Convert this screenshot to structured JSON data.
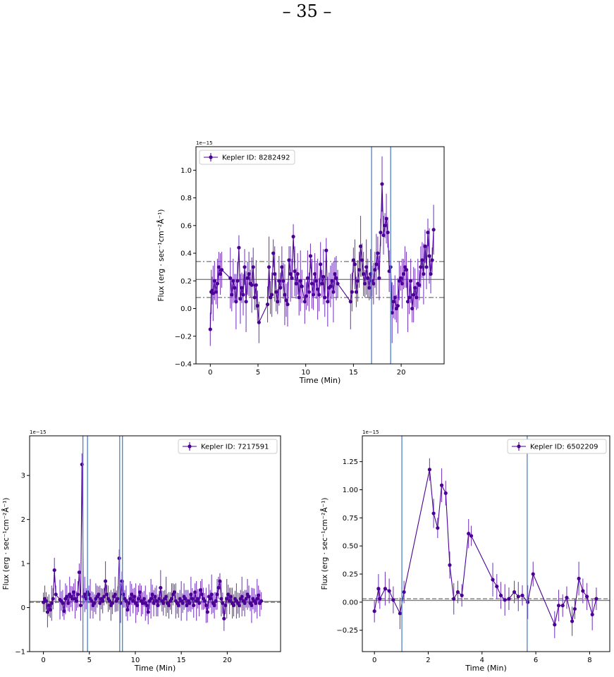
{
  "page_number": "– 35 –",
  "colors": {
    "series": "#4b0096",
    "vline": "#4e82c8",
    "hline": "#7f7f7f"
  },
  "chart_data": [
    {
      "type": "scatter",
      "legend": "Kepler ID: 8282492",
      "legend_loc": "top-left",
      "offset_text": "1e−15",
      "xlabel": "Time (Min)",
      "ylabel": "Flux (erg · sec⁻¹cm⁻²Å⁻¹)",
      "xlim": [
        -1.5,
        24.5
      ],
      "ylim": [
        -0.4,
        1.17
      ],
      "xticks": [
        0,
        5,
        10,
        15,
        20
      ],
      "yticks": [
        -0.4,
        -0.2,
        0.0,
        0.2,
        0.4,
        0.6,
        0.8,
        1.0
      ],
      "ytick_labels": [
        "−0.4",
        "−0.2",
        "0.0",
        "0.2",
        "0.4",
        "0.6",
        "0.8",
        "1.0"
      ],
      "vlines": [
        16.9,
        18.9
      ],
      "hlines": [
        {
          "y": 0.21,
          "style": "solid"
        },
        {
          "y": 0.34,
          "style": "dashdot"
        },
        {
          "y": 0.08,
          "style": "dashdot"
        }
      ],
      "x": [
        0.0,
        0.1,
        0.2,
        0.3,
        0.45,
        0.6,
        0.75,
        0.9,
        1.05,
        1.2,
        2.1,
        2.25,
        2.4,
        2.55,
        2.7,
        2.85,
        3.0,
        3.15,
        3.3,
        3.45,
        3.6,
        3.75,
        3.9,
        4.05,
        4.2,
        4.35,
        4.5,
        4.65,
        4.8,
        4.95,
        5.1,
        6.0,
        6.15,
        6.3,
        6.45,
        6.6,
        6.75,
        6.9,
        7.05,
        7.2,
        7.35,
        7.5,
        7.65,
        7.8,
        7.95,
        8.1,
        8.25,
        8.4,
        8.55,
        8.7,
        8.85,
        9.0,
        9.15,
        9.3,
        9.45,
        9.6,
        9.9,
        10.05,
        10.2,
        10.35,
        10.5,
        10.65,
        10.8,
        10.95,
        11.1,
        11.25,
        11.4,
        11.55,
        11.7,
        11.85,
        12.0,
        12.15,
        12.3,
        12.45,
        12.6,
        12.75,
        12.9,
        13.05,
        13.2,
        13.35,
        14.7,
        14.85,
        15.0,
        15.15,
        15.3,
        15.45,
        15.6,
        15.75,
        15.9,
        16.05,
        16.2,
        16.35,
        16.5,
        16.65,
        16.8,
        16.95,
        17.1,
        17.25,
        17.4,
        17.55,
        17.7,
        17.85,
        18.0,
        18.15,
        18.3,
        18.45,
        18.6,
        18.75,
        18.9,
        19.05,
        19.2,
        19.35,
        19.5,
        19.65,
        19.8,
        19.95,
        20.1,
        20.25,
        20.4,
        20.55,
        20.7,
        20.85,
        21.0,
        21.15,
        21.3,
        21.45,
        21.6,
        21.75,
        21.9,
        22.05,
        22.2,
        22.35,
        22.5,
        22.65,
        22.8,
        22.95,
        23.1,
        23.25,
        23.4
      ],
      "y": [
        -0.15,
        0.12,
        0.13,
        0.11,
        0.2,
        0.12,
        0.18,
        0.3,
        0.25,
        0.28,
        0.22,
        0.1,
        0.2,
        0.15,
        0.05,
        0.2,
        0.44,
        0.07,
        0.15,
        0.1,
        0.3,
        0.05,
        0.22,
        0.25,
        0.18,
        0.17,
        0.3,
        0.08,
        0.17,
        0.02,
        -0.1,
        0.03,
        0.3,
        0.08,
        0.1,
        0.4,
        0.25,
        0.12,
        0.05,
        0.2,
        0.15,
        0.3,
        0.2,
        0.1,
        0.06,
        0.03,
        0.35,
        0.25,
        0.22,
        0.52,
        0.27,
        0.18,
        0.25,
        0.08,
        0.2,
        0.16,
        0.05,
        0.09,
        0.22,
        0.12,
        0.38,
        0.18,
        0.1,
        0.25,
        0.2,
        0.14,
        0.1,
        0.32,
        0.18,
        0.23,
        0.08,
        0.42,
        0.05,
        0.15,
        0.16,
        0.2,
        0.12,
        0.25,
        0.22,
        0.18,
        0.05,
        0.12,
        0.35,
        0.32,
        0.12,
        0.2,
        0.28,
        0.45,
        0.35,
        0.25,
        0.18,
        0.3,
        0.22,
        0.15,
        0.25,
        0.2,
        0.18,
        0.28,
        0.32,
        0.4,
        0.22,
        0.55,
        0.9,
        0.53,
        0.6,
        0.65,
        0.55,
        0.27,
        0.3,
        -0.03,
        0.05,
        0.08,
        0.0,
        0.02,
        0.2,
        0.22,
        0.18,
        0.25,
        0.3,
        0.28,
        0.05,
        0.08,
        0.2,
        0.0,
        0.1,
        0.15,
        0.08,
        0.18,
        0.17,
        0.3,
        0.35,
        0.25,
        0.45,
        0.3,
        0.55,
        0.38,
        0.25,
        0.35,
        0.57
      ],
      "yerr_pattern": [
        0.12,
        0.16,
        0.1,
        0.2,
        0.14,
        0.09,
        0.18,
        0.11,
        0.15,
        0.13,
        0.22
      ]
    },
    {
      "type": "scatter",
      "legend": "Kepler ID: 7217591",
      "legend_loc": "top-right",
      "offset_text": "1e−15",
      "xlabel": "Time (Min)",
      "ylabel": "Flux (erg · sec⁻¹cm⁻²Å⁻¹)",
      "xlim": [
        -1.5,
        25.8
      ],
      "ylim": [
        -1.0,
        3.9
      ],
      "xticks": [
        0,
        5,
        10,
        15,
        20
      ],
      "yticks": [
        -1,
        0,
        1,
        2,
        3
      ],
      "ytick_labels": [
        "−1",
        "0",
        "1",
        "2",
        "3"
      ],
      "vlines": [
        4.3,
        4.8,
        8.3,
        8.6
      ],
      "hlines": [
        {
          "y": 0.14,
          "style": "solid"
        },
        {
          "y": 0.12,
          "style": "dashed"
        }
      ],
      "x": [
        0.0,
        0.15,
        0.3,
        0.45,
        0.6,
        0.75,
        0.9,
        1.05,
        1.2,
        1.35,
        1.8,
        1.95,
        2.1,
        2.25,
        2.4,
        2.55,
        2.7,
        2.85,
        3.0,
        3.15,
        3.3,
        3.45,
        3.6,
        3.75,
        3.9,
        4.05,
        4.2,
        4.35,
        4.5,
        4.65,
        4.8,
        4.95,
        5.1,
        5.25,
        5.4,
        5.55,
        5.7,
        5.85,
        6.0,
        6.15,
        6.3,
        6.45,
        6.6,
        6.75,
        6.9,
        7.05,
        7.2,
        7.35,
        7.5,
        7.65,
        7.8,
        7.95,
        8.1,
        8.25,
        8.4,
        8.55,
        8.7,
        8.85,
        9.0,
        9.15,
        9.3,
        9.45,
        9.6,
        9.75,
        9.9,
        10.05,
        10.2,
        10.35,
        10.5,
        10.65,
        10.8,
        10.95,
        11.1,
        11.25,
        11.4,
        11.55,
        11.7,
        11.85,
        12.0,
        12.15,
        12.3,
        12.45,
        12.6,
        12.75,
        12.9,
        13.05,
        13.2,
        13.35,
        13.5,
        13.65,
        13.8,
        13.95,
        14.1,
        14.25,
        14.4,
        14.55,
        14.7,
        14.85,
        15.0,
        15.15,
        15.3,
        15.45,
        15.6,
        15.75,
        15.9,
        16.05,
        16.2,
        16.35,
        16.5,
        16.65,
        16.8,
        16.95,
        17.1,
        17.25,
        17.4,
        17.55,
        17.7,
        17.85,
        18.0,
        18.15,
        18.3,
        18.45,
        18.6,
        18.75,
        18.9,
        19.05,
        19.2,
        19.35,
        19.5,
        19.65,
        19.8,
        19.95,
        20.1,
        20.25,
        20.4,
        20.55,
        20.7,
        20.85,
        21.0,
        21.15,
        21.3,
        21.45,
        21.6,
        21.75,
        21.9,
        22.05,
        22.2,
        22.35,
        22.5,
        22.65,
        22.8,
        22.95,
        23.1,
        23.25,
        23.4,
        23.55,
        23.7
      ],
      "y": [
        0.12,
        0.2,
        0.15,
        -0.1,
        0.05,
        -0.05,
        0.1,
        0.2,
        0.85,
        0.3,
        0.18,
        0.15,
        0.1,
        -0.08,
        0.2,
        0.25,
        0.1,
        0.3,
        0.25,
        0.2,
        0.35,
        0.2,
        0.15,
        0.3,
        0.8,
        0.05,
        3.25,
        0.25,
        0.3,
        0.2,
        0.35,
        0.3,
        0.2,
        0.15,
        0.05,
        0.1,
        0.2,
        0.25,
        0.3,
        0.1,
        0.2,
        0.15,
        0.25,
        0.6,
        0.3,
        0.2,
        0.15,
        0.05,
        0.1,
        0.25,
        0.3,
        0.15,
        0.2,
        1.12,
        0.1,
        0.6,
        0.3,
        0.2,
        0.15,
        -0.05,
        0.1,
        0.2,
        0.3,
        0.15,
        0.25,
        0.1,
        0.05,
        0.2,
        0.35,
        0.15,
        0.1,
        0.2,
        0.1,
        0.05,
        -0.1,
        0.15,
        0.2,
        0.3,
        0.1,
        0.25,
        0.15,
        0.05,
        0.2,
        0.45,
        0.15,
        0.1,
        0.2,
        0.25,
        0.1,
        0.05,
        0.15,
        0.2,
        0.3,
        0.35,
        0.15,
        0.1,
        0.05,
        0.2,
        0.15,
        0.1,
        0.25,
        0.2,
        0.05,
        0.15,
        0.1,
        0.3,
        0.2,
        0.05,
        0.35,
        0.15,
        0.2,
        0.1,
        0.4,
        0.3,
        0.2,
        0.15,
        0.05,
        -0.1,
        0.25,
        0.2,
        0.3,
        0.1,
        0.05,
        0.15,
        0.3,
        0.45,
        0.6,
        0.2,
        0.1,
        -0.25,
        0.05,
        0.2,
        0.3,
        0.15,
        0.25,
        0.1,
        0.05,
        0.2,
        0.15,
        0.1,
        0.05,
        0.2,
        0.25,
        0.15,
        0.1,
        0.2,
        0.3,
        0.25,
        0.1,
        0.05,
        0.2,
        0.15,
        0.1,
        0.2,
        0.28,
        0.1,
        0.15
      ],
      "yerr_pattern": [
        0.22,
        0.3,
        0.2,
        0.35,
        0.25,
        0.18,
        0.4,
        0.24,
        0.28,
        0.2,
        0.45
      ]
    },
    {
      "type": "scatter",
      "legend": "Kepler ID: 6502209",
      "legend_loc": "top-right",
      "offset_text": "1e−15",
      "xlabel": "Time (Min)",
      "ylabel": "Flux (erg · sec⁻¹cm⁻²Å⁻¹)",
      "xlim": [
        -0.45,
        8.75
      ],
      "ylim": [
        -0.44,
        1.48
      ],
      "xticks": [
        0,
        2,
        4,
        6,
        8
      ],
      "yticks": [
        -0.25,
        0.0,
        0.25,
        0.5,
        0.75,
        1.0,
        1.25
      ],
      "ytick_labels": [
        "−0.25",
        "0.00",
        "0.25",
        "0.50",
        "0.75",
        "1.00",
        "1.25"
      ],
      "vlines": [
        1.02,
        5.68
      ],
      "hlines": [
        {
          "y": 0.015,
          "style": "solid"
        },
        {
          "y": 0.03,
          "style": "dashed"
        }
      ],
      "x": [
        0.0,
        0.15,
        0.2,
        0.4,
        0.55,
        0.7,
        0.95,
        1.1,
        2.05,
        2.2,
        2.35,
        2.5,
        2.65,
        2.8,
        2.95,
        3.1,
        3.25,
        3.5,
        3.6,
        4.4,
        4.55,
        4.7,
        4.85,
        5.0,
        5.2,
        5.35,
        5.5,
        5.7,
        5.9,
        6.7,
        6.85,
        7.0,
        7.15,
        7.35,
        7.45,
        7.6,
        7.75,
        7.9,
        8.1,
        8.25
      ],
      "y": [
        -0.08,
        0.12,
        0.03,
        0.12,
        0.1,
        0.02,
        -0.1,
        0.09,
        1.18,
        0.79,
        0.66,
        1.04,
        0.97,
        0.33,
        0.03,
        0.09,
        0.06,
        0.61,
        0.59,
        0.2,
        0.14,
        0.06,
        0.02,
        0.03,
        0.09,
        0.05,
        0.06,
        0.0,
        0.25,
        -0.2,
        -0.03,
        -0.03,
        0.04,
        -0.17,
        -0.06,
        0.21,
        0.1,
        0.05,
        -0.11,
        0.03
      ],
      "yerr_pattern": [
        0.1,
        0.13,
        0.09,
        0.15,
        0.11,
        0.12,
        0.14,
        0.1
      ]
    }
  ]
}
